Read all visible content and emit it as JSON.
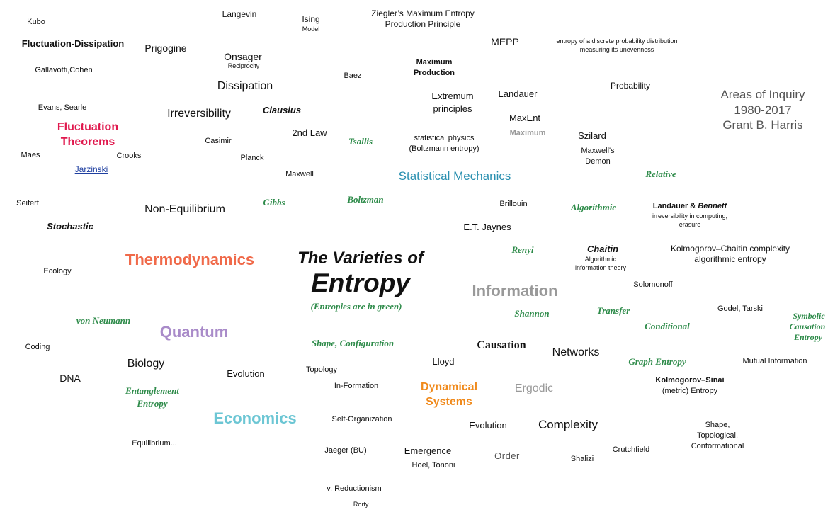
{
  "title": {
    "line1": "The Varieties of",
    "line2": "Entropy",
    "note": "(Entropies are in green)"
  },
  "attribution": {
    "line1": "Areas of Inquiry",
    "line2": "1980-2017",
    "line3": "Grant B. Harris"
  },
  "colors": {
    "green": "#2e8b4a",
    "thermodynamics": "#f06a4a",
    "fluctuation_theorems": "#e0184d",
    "information": "#999999",
    "quantum": "#a98bc9",
    "economics": "#6cc6d4",
    "statistical_mechanics": "#2a90b0",
    "dynamical_systems": "#f08a1c",
    "ergodic": "#999999",
    "maximum": "#999999"
  },
  "terms": {
    "kubo": "Kubo",
    "langevin": "Langevin",
    "ising": "Ising",
    "ising_sub": "Model",
    "ziegler_1": "Ziegler’s Maximum Entropy",
    "ziegler_2": "Production Principle",
    "mepp": "MEPP",
    "discrete_1": "entropy of a discrete probability distribution",
    "discrete_2": "measuring its unevenness",
    "fluct_diss": "Fluctuation-Dissipation",
    "prigogine": "Prigogine",
    "onsager": "Onsager",
    "onsager_sub": "Reciprocity",
    "max_prod_1": "Maximum",
    "max_prod_2": "Production",
    "baez": "Baez",
    "gallavotti": "Gallavotti,Cohen",
    "dissipation": "Dissipation",
    "extremum_1": "Extremum",
    "extremum_2": "principles",
    "landauer": "Landauer",
    "probability": "Probability",
    "evans": "Evans, Searle",
    "irreversibility": "Irreversibility",
    "clausius": "Clausius",
    "maxent": "MaxEnt",
    "maximum": "Maximum",
    "fluct_thm_1": "Fluctuation",
    "fluct_thm_2": "Theorems",
    "second_law": "2nd Law",
    "tsallis": "Tsallis",
    "stat_phys_1": "statistical physics",
    "stat_phys_2": "(Boltzmann entropy)",
    "szilard": "Szilard",
    "casimir": "Casimir",
    "maes": "Maes",
    "crooks": "Crooks",
    "planck": "Planck",
    "maxwells_demon_1": "Maxwell's",
    "maxwells_demon_2": "Demon",
    "jarzinski": "Jarzinski",
    "maxwell": "Maxwell",
    "stat_mech": "Statistical Mechanics",
    "relative": "Relative",
    "seifert": "Seifert",
    "gibbs": "Gibbs",
    "boltzman": "Boltzman",
    "brillouin": "Brillouin",
    "algorithmic": "Algorithmic",
    "landauer_bennett_1": "Landauer &",
    "landauer_bennett_2": "Bennett",
    "landauer_bennett_3": "irreversibility in computing,",
    "landauer_bennett_4": "erasure",
    "non_equilibrium": "Non-Equilibrium",
    "stochastic": "Stochastic",
    "jaynes": "E.T. Jaynes",
    "renyi": "Renyi",
    "chaitin": "Chaitin",
    "chaitin_sub_1": "Algorithmic",
    "chaitin_sub_2": "information theory",
    "kolmogorov_1": "Kolmogorov–Chaitin complexity",
    "kolmogorov_2": "algorithmic entropy",
    "thermodynamics": "Thermodynamics",
    "ecology": "Ecology",
    "information": "Information",
    "solomonoff": "Solomonoff",
    "shannon": "Shannon",
    "transfer": "Transfer",
    "godel": "Godel, Tarski",
    "symbolic_1": "Symbolic",
    "symbolic_2": "Causation",
    "symbolic_3": "Entropy",
    "von_neumann": "von Neumann",
    "quantum": "Quantum",
    "conditional": "Conditional",
    "coding": "Coding",
    "shape_config": "Shape, Configuration",
    "causation": "Causation",
    "networks": "Networks",
    "biology": "Biology",
    "graph_entropy": "Graph Entropy",
    "mutual_info": "Mutual Information",
    "topology": "Topology",
    "lloyd": "Lloyd",
    "dna": "DNA",
    "evolution_left": "Evolution",
    "kolmogorov_sinai_1": "Kolmogorov–Sinai",
    "kolmogorov_sinai_2": "(metric) Entropy",
    "entanglement_1": "Entanglement",
    "entanglement_2": "Entropy",
    "in_formation": "In-Formation",
    "dynamical_1": "Dynamical",
    "dynamical_2": "Systems",
    "ergodic": "Ergodic",
    "economics": "Economics",
    "self_org": "Self-Organization",
    "evolution_mid": "Evolution",
    "complexity": "Complexity",
    "shape_top_1": "Shape,",
    "shape_top_2": "Topological,",
    "shape_top_3": "Conformational",
    "equilibrium": "Equilibrium...",
    "jaeger": "Jaeger (BU)",
    "emergence": "Emergence",
    "order": "Order",
    "crutchfield": "Crutchfield",
    "shalizi": "Shalizi",
    "hoel": "Hoel, Tononi",
    "reductionism": "v. Reductionism",
    "rorty": "Rorty..."
  }
}
